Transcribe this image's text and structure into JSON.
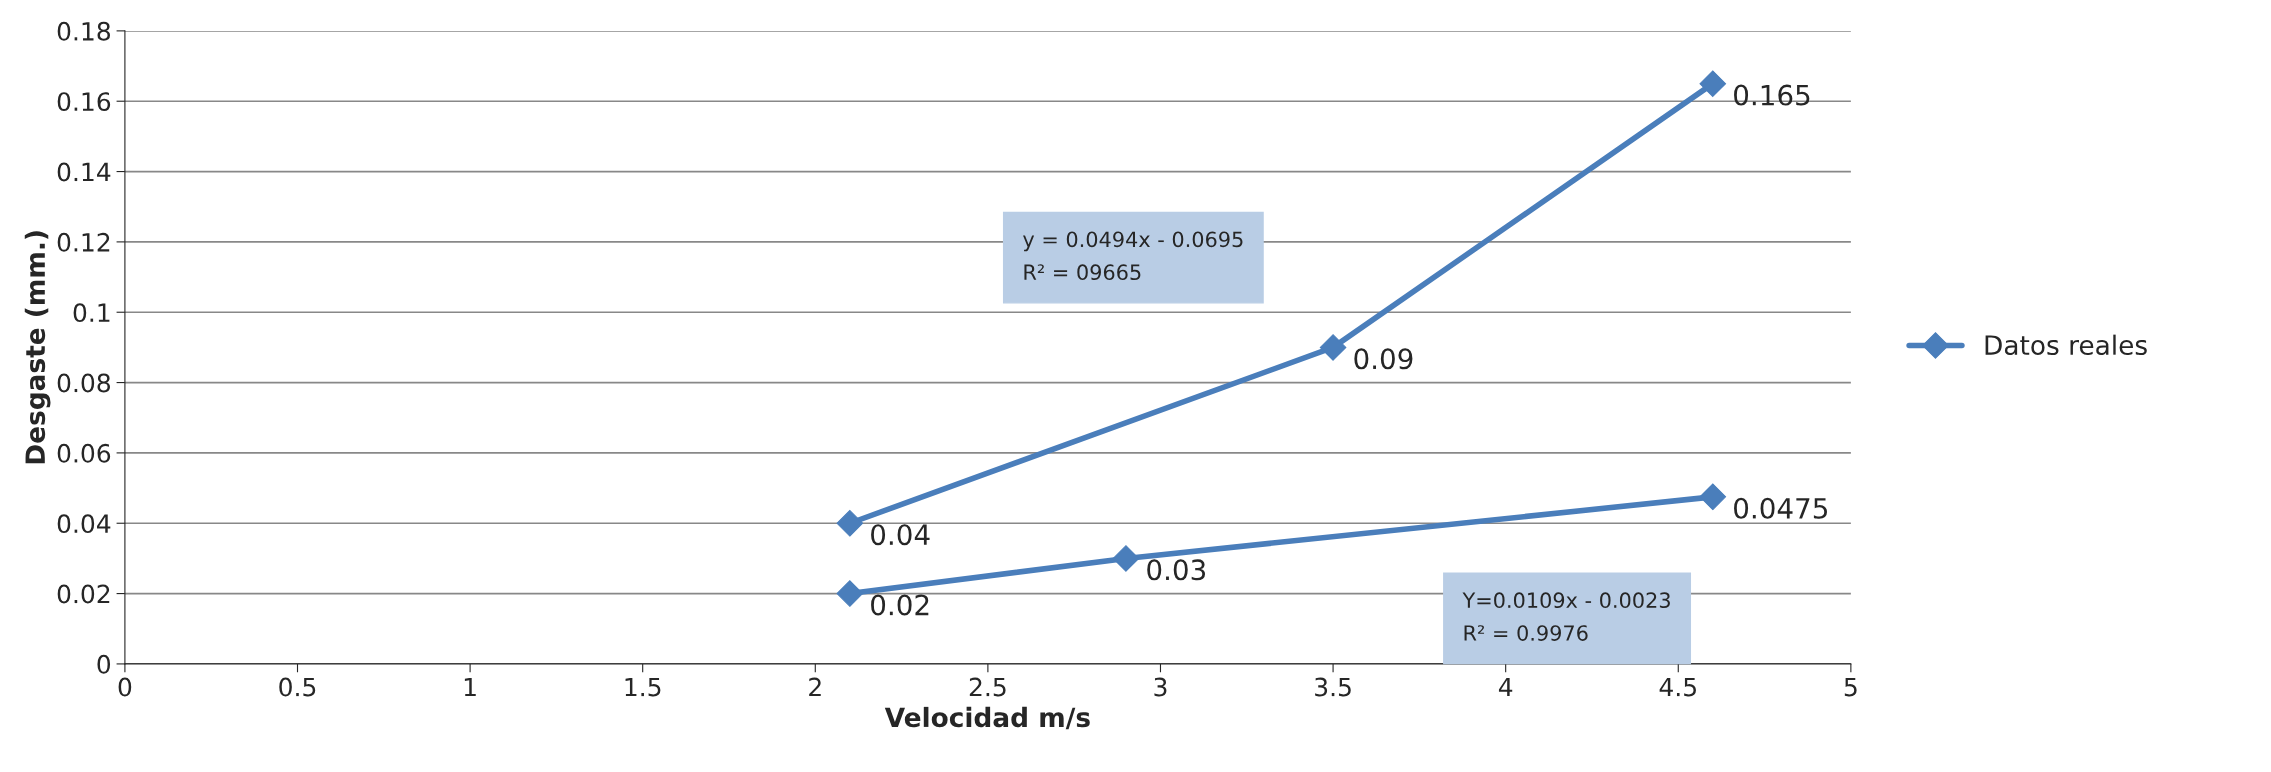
{
  "chart_data": {
    "type": "line",
    "xlabel": "Velocidad m/s",
    "ylabel": "Desgaste (mm.)",
    "series": [
      {
        "name": "Datos reales",
        "color": "#4a7ebb",
        "x": [
          2.1,
          3.5,
          4.6
        ],
        "values": [
          0.04,
          0.09,
          0.165
        ]
      },
      {
        "color": "#4a7ebb",
        "x": [
          2.1,
          2.9,
          4.6
        ],
        "values": [
          0.02,
          0.03,
          0.0475
        ]
      }
    ],
    "annotations": [
      "y = 0.0494x - 0.0695\nR² = 09665",
      "Y=0.0109x - 0.0023\nR² = 0.9976"
    ],
    "xlim": [
      0,
      5
    ],
    "ylim": [
      0,
      0.18
    ],
    "xticks": [
      0,
      0.5,
      1,
      1.5,
      2,
      2.5,
      3,
      3.5,
      4,
      4.5,
      5
    ],
    "yticks": [
      0,
      0.02,
      0.04,
      0.06,
      0.08,
      0.1,
      0.12,
      0.14,
      0.16,
      0.18
    ],
    "grid": "y",
    "legend": "right",
    "marker": "diamond",
    "line_style": "solid",
    "data_labels": true
  }
}
